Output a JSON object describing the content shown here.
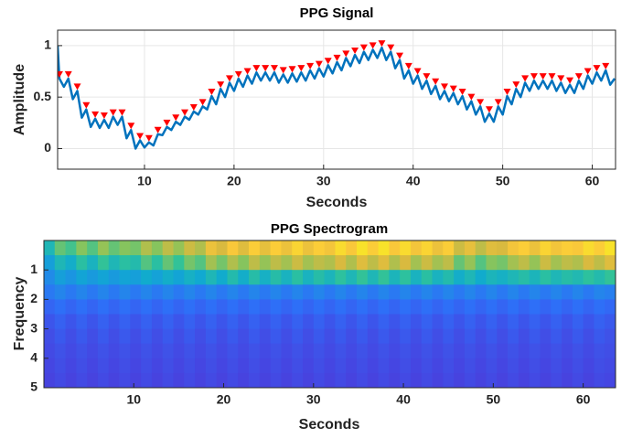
{
  "chart_data": [
    {
      "type": "line",
      "title": "PPG Signal",
      "xlabel": "Seconds",
      "ylabel": "Amplitude",
      "xlim": [
        0.3,
        62.6
      ],
      "ylim": [
        -0.2,
        1.15
      ],
      "xticks": [
        10,
        20,
        30,
        40,
        50,
        60
      ],
      "yticks": [
        0,
        0.5,
        1
      ],
      "grid": true,
      "series": [
        {
          "color": "#0072bd",
          "x": [
            0.3,
            0.5,
            1,
            1.5,
            2,
            2.5,
            3,
            3.5,
            4,
            4.5,
            5,
            5.5,
            6,
            6.5,
            7,
            7.5,
            8,
            8.5,
            9,
            9.5,
            10,
            10.5,
            11,
            11.5,
            12,
            12.5,
            13,
            13.5,
            14,
            14.5,
            15,
            15.5,
            16,
            16.5,
            17,
            17.5,
            18,
            18.5,
            19,
            19.5,
            20,
            20.5,
            21,
            21.5,
            22,
            22.5,
            23,
            23.5,
            24,
            24.5,
            25,
            25.5,
            26,
            26.5,
            27,
            27.5,
            28,
            28.5,
            29,
            29.5,
            30,
            30.5,
            31,
            31.5,
            32,
            32.5,
            33,
            33.5,
            34,
            34.5,
            35,
            35.5,
            36,
            36.5,
            37,
            37.5,
            38,
            38.5,
            39,
            39.5,
            40,
            40.5,
            41,
            41.5,
            42,
            42.5,
            43,
            43.5,
            44,
            44.5,
            45,
            45.5,
            46,
            46.5,
            47,
            47.5,
            48,
            48.5,
            49,
            49.5,
            50,
            50.5,
            51,
            51.5,
            52,
            52.5,
            53,
            53.5,
            54,
            54.5,
            55,
            55.5,
            56,
            56.5,
            57,
            57.5,
            58,
            58.5,
            59,
            59.5,
            60,
            60.5,
            61,
            61.5,
            62,
            62.5
          ],
          "values": [
            1.0,
            0.68,
            0.6,
            0.68,
            0.48,
            0.56,
            0.3,
            0.38,
            0.21,
            0.29,
            0.2,
            0.28,
            0.2,
            0.31,
            0.23,
            0.31,
            0.1,
            0.18,
            0.0,
            0.08,
            0.01,
            0.06,
            0.03,
            0.14,
            0.13,
            0.21,
            0.18,
            0.26,
            0.23,
            0.31,
            0.28,
            0.36,
            0.33,
            0.41,
            0.38,
            0.51,
            0.43,
            0.58,
            0.5,
            0.64,
            0.56,
            0.68,
            0.6,
            0.71,
            0.63,
            0.74,
            0.66,
            0.74,
            0.66,
            0.74,
            0.64,
            0.72,
            0.64,
            0.73,
            0.65,
            0.74,
            0.66,
            0.76,
            0.68,
            0.78,
            0.7,
            0.81,
            0.73,
            0.84,
            0.76,
            0.88,
            0.8,
            0.91,
            0.83,
            0.94,
            0.86,
            0.96,
            0.88,
            0.98,
            0.86,
            0.94,
            0.78,
            0.86,
            0.68,
            0.76,
            0.63,
            0.71,
            0.58,
            0.66,
            0.53,
            0.61,
            0.48,
            0.56,
            0.46,
            0.54,
            0.43,
            0.51,
            0.38,
            0.46,
            0.33,
            0.41,
            0.26,
            0.34,
            0.26,
            0.41,
            0.33,
            0.51,
            0.43,
            0.58,
            0.5,
            0.64,
            0.56,
            0.66,
            0.58,
            0.66,
            0.58,
            0.66,
            0.56,
            0.64,
            0.54,
            0.62,
            0.54,
            0.66,
            0.58,
            0.71,
            0.63,
            0.74,
            0.66,
            0.76,
            0.62,
            0.68
          ]
        },
        {
          "color": "#ff0000",
          "marker": "triangle-down",
          "x": [
            0.5,
            1.5,
            2.5,
            3.5,
            4.5,
            5.5,
            6.5,
            7.5,
            8.5,
            9.5,
            10.5,
            11.5,
            12.5,
            13.5,
            14.5,
            15.5,
            16.5,
            17.5,
            18.5,
            19.5,
            20.5,
            21.5,
            22.5,
            23.5,
            24.5,
            25.5,
            26.5,
            27.5,
            28.5,
            29.5,
            30.5,
            31.5,
            32.5,
            33.5,
            34.5,
            35.5,
            36.5,
            37.5,
            38.5,
            39.5,
            40.5,
            41.5,
            42.5,
            43.5,
            44.5,
            45.5,
            46.5,
            47.5,
            48.5,
            49.5,
            50.5,
            51.5,
            52.5,
            53.5,
            54.5,
            55.5,
            56.5,
            57.5,
            58.5,
            59.5,
            60.5,
            61.5
          ],
          "values": [
            0.72,
            0.72,
            0.6,
            0.42,
            0.33,
            0.32,
            0.35,
            0.35,
            0.22,
            0.12,
            0.1,
            0.18,
            0.25,
            0.3,
            0.35,
            0.4,
            0.45,
            0.55,
            0.62,
            0.68,
            0.72,
            0.75,
            0.78,
            0.78,
            0.78,
            0.76,
            0.77,
            0.78,
            0.8,
            0.82,
            0.85,
            0.88,
            0.92,
            0.95,
            0.98,
            1.0,
            1.02,
            0.98,
            0.9,
            0.8,
            0.75,
            0.7,
            0.65,
            0.6,
            0.58,
            0.55,
            0.5,
            0.45,
            0.38,
            0.45,
            0.55,
            0.62,
            0.68,
            0.7,
            0.7,
            0.7,
            0.68,
            0.66,
            0.7,
            0.75,
            0.78,
            0.8
          ]
        }
      ]
    },
    {
      "type": "heatmap",
      "title": "PPG Spectrogram",
      "xlabel": "Seconds",
      "ylabel": "Frequency",
      "colormap": "parula",
      "xlim": [
        0,
        63.6
      ],
      "ylim": [
        5,
        0
      ],
      "xticks": [
        10,
        20,
        30,
        40,
        50,
        60
      ],
      "yticks": [
        1,
        2,
        3,
        4,
        5
      ],
      "xbins": [
        0,
        1.2,
        2.4,
        3.6,
        4.8,
        6,
        7.2,
        8.4,
        9.6,
        10.8,
        12,
        13.2,
        14.4,
        15.6,
        16.8,
        18,
        19.2,
        20.4,
        21.6,
        22.8,
        24,
        25.2,
        26.4,
        27.6,
        28.8,
        30,
        31.2,
        32.4,
        33.6,
        34.8,
        36,
        37.2,
        38.4,
        39.6,
        40.8,
        42,
        43.2,
        44.4,
        45.6,
        46.8,
        48,
        49.2,
        50.4,
        51.6,
        52.8,
        54,
        55.2,
        56.4,
        57.6,
        58.8,
        60,
        61.2,
        62.4,
        63.6
      ],
      "ybins": [
        0,
        0.5,
        1,
        1.5,
        2,
        2.5,
        3,
        3.5,
        4,
        4.5,
        5
      ],
      "z": [
        [
          0.5,
          0.62,
          0.58,
          0.66,
          0.6,
          0.68,
          0.62,
          0.66,
          0.64,
          0.72,
          0.66,
          0.74,
          0.68,
          0.76,
          0.72,
          0.84,
          0.78,
          0.88,
          0.8,
          0.9,
          0.82,
          0.9,
          0.84,
          0.92,
          0.84,
          0.9,
          0.86,
          0.94,
          0.88,
          0.96,
          0.9,
          0.96,
          0.88,
          0.94,
          0.86,
          0.92,
          0.84,
          0.9,
          0.76,
          0.82,
          0.74,
          0.8,
          0.78,
          0.86,
          0.9,
          0.84,
          0.92,
          0.86,
          0.9,
          0.88,
          0.94,
          0.9,
          0.96
        ],
        [
          0.4,
          0.5,
          0.46,
          0.54,
          0.48,
          0.56,
          0.5,
          0.54,
          0.52,
          0.6,
          0.54,
          0.62,
          0.56,
          0.64,
          0.6,
          0.7,
          0.64,
          0.72,
          0.66,
          0.74,
          0.68,
          0.74,
          0.7,
          0.76,
          0.7,
          0.74,
          0.72,
          0.78,
          0.72,
          0.8,
          0.74,
          0.8,
          0.72,
          0.78,
          0.7,
          0.76,
          0.7,
          0.74,
          0.62,
          0.68,
          0.6,
          0.66,
          0.64,
          0.7,
          0.74,
          0.68,
          0.76,
          0.7,
          0.74,
          0.72,
          0.78,
          0.74,
          0.8
        ],
        [
          0.32,
          0.4,
          0.36,
          0.42,
          0.38,
          0.42,
          0.38,
          0.42,
          0.4,
          0.45,
          0.41,
          0.46,
          0.42,
          0.47,
          0.44,
          0.5,
          0.45,
          0.52,
          0.46,
          0.53,
          0.47,
          0.53,
          0.48,
          0.54,
          0.48,
          0.53,
          0.49,
          0.55,
          0.5,
          0.56,
          0.5,
          0.56,
          0.49,
          0.55,
          0.48,
          0.54,
          0.48,
          0.52,
          0.46,
          0.5,
          0.45,
          0.49,
          0.47,
          0.5,
          0.53,
          0.49,
          0.54,
          0.5,
          0.53,
          0.51,
          0.55,
          0.52,
          0.56
        ],
        [
          0.26,
          0.3,
          0.26,
          0.3,
          0.26,
          0.3,
          0.26,
          0.3,
          0.26,
          0.3,
          0.26,
          0.3,
          0.26,
          0.3,
          0.26,
          0.3,
          0.26,
          0.3,
          0.26,
          0.3,
          0.26,
          0.3,
          0.26,
          0.3,
          0.26,
          0.3,
          0.26,
          0.3,
          0.26,
          0.3,
          0.26,
          0.3,
          0.26,
          0.3,
          0.26,
          0.3,
          0.26,
          0.3,
          0.26,
          0.3,
          0.26,
          0.3,
          0.26,
          0.3,
          0.26,
          0.3,
          0.26,
          0.3,
          0.26,
          0.3,
          0.26,
          0.3,
          0.28
        ],
        [
          0.2,
          0.23,
          0.2,
          0.23,
          0.2,
          0.23,
          0.2,
          0.23,
          0.2,
          0.23,
          0.2,
          0.23,
          0.2,
          0.23,
          0.2,
          0.23,
          0.2,
          0.23,
          0.2,
          0.23,
          0.2,
          0.23,
          0.2,
          0.23,
          0.2,
          0.23,
          0.2,
          0.23,
          0.2,
          0.23,
          0.2,
          0.23,
          0.2,
          0.23,
          0.2,
          0.23,
          0.2,
          0.23,
          0.2,
          0.23,
          0.2,
          0.23,
          0.2,
          0.23,
          0.2,
          0.23,
          0.2,
          0.23,
          0.2,
          0.23,
          0.2,
          0.23,
          0.21
        ],
        [
          0.16,
          0.19,
          0.16,
          0.19,
          0.16,
          0.19,
          0.16,
          0.19,
          0.16,
          0.19,
          0.16,
          0.19,
          0.16,
          0.19,
          0.16,
          0.19,
          0.16,
          0.19,
          0.16,
          0.19,
          0.16,
          0.19,
          0.16,
          0.19,
          0.16,
          0.19,
          0.16,
          0.19,
          0.16,
          0.19,
          0.16,
          0.19,
          0.16,
          0.19,
          0.16,
          0.19,
          0.16,
          0.19,
          0.16,
          0.19,
          0.16,
          0.19,
          0.16,
          0.19,
          0.16,
          0.19,
          0.16,
          0.19,
          0.16,
          0.19,
          0.16,
          0.19,
          0.17
        ],
        [
          0.14,
          0.17,
          0.14,
          0.17,
          0.14,
          0.17,
          0.14,
          0.17,
          0.14,
          0.17,
          0.14,
          0.17,
          0.14,
          0.17,
          0.14,
          0.17,
          0.14,
          0.17,
          0.14,
          0.17,
          0.14,
          0.17,
          0.14,
          0.17,
          0.14,
          0.17,
          0.14,
          0.17,
          0.14,
          0.17,
          0.14,
          0.17,
          0.14,
          0.17,
          0.14,
          0.17,
          0.14,
          0.17,
          0.14,
          0.17,
          0.14,
          0.17,
          0.14,
          0.17,
          0.14,
          0.17,
          0.14,
          0.17,
          0.14,
          0.17,
          0.14,
          0.17,
          0.15
        ],
        [
          0.13,
          0.15,
          0.13,
          0.15,
          0.13,
          0.15,
          0.13,
          0.15,
          0.13,
          0.15,
          0.13,
          0.15,
          0.13,
          0.15,
          0.13,
          0.15,
          0.13,
          0.15,
          0.13,
          0.15,
          0.13,
          0.15,
          0.13,
          0.15,
          0.13,
          0.15,
          0.13,
          0.15,
          0.13,
          0.15,
          0.13,
          0.15,
          0.13,
          0.15,
          0.13,
          0.15,
          0.13,
          0.15,
          0.13,
          0.15,
          0.13,
          0.15,
          0.13,
          0.15,
          0.13,
          0.15,
          0.13,
          0.15,
          0.13,
          0.15,
          0.13,
          0.15,
          0.14
        ],
        [
          0.12,
          0.14,
          0.12,
          0.14,
          0.12,
          0.14,
          0.12,
          0.14,
          0.12,
          0.14,
          0.12,
          0.14,
          0.12,
          0.14,
          0.12,
          0.14,
          0.12,
          0.14,
          0.12,
          0.14,
          0.12,
          0.14,
          0.12,
          0.14,
          0.12,
          0.14,
          0.12,
          0.14,
          0.12,
          0.14,
          0.12,
          0.14,
          0.12,
          0.14,
          0.12,
          0.14,
          0.12,
          0.14,
          0.12,
          0.14,
          0.12,
          0.14,
          0.12,
          0.14,
          0.12,
          0.14,
          0.12,
          0.14,
          0.12,
          0.14,
          0.12,
          0.14,
          0.13
        ],
        [
          0.11,
          0.13,
          0.11,
          0.13,
          0.11,
          0.13,
          0.11,
          0.13,
          0.11,
          0.13,
          0.11,
          0.13,
          0.11,
          0.13,
          0.11,
          0.13,
          0.11,
          0.13,
          0.11,
          0.13,
          0.11,
          0.13,
          0.11,
          0.13,
          0.11,
          0.13,
          0.11,
          0.13,
          0.11,
          0.13,
          0.11,
          0.13,
          0.11,
          0.13,
          0.11,
          0.13,
          0.11,
          0.13,
          0.11,
          0.13,
          0.11,
          0.13,
          0.11,
          0.13,
          0.11,
          0.13,
          0.11,
          0.13,
          0.11,
          0.13,
          0.11,
          0.13,
          0.12
        ]
      ]
    }
  ]
}
